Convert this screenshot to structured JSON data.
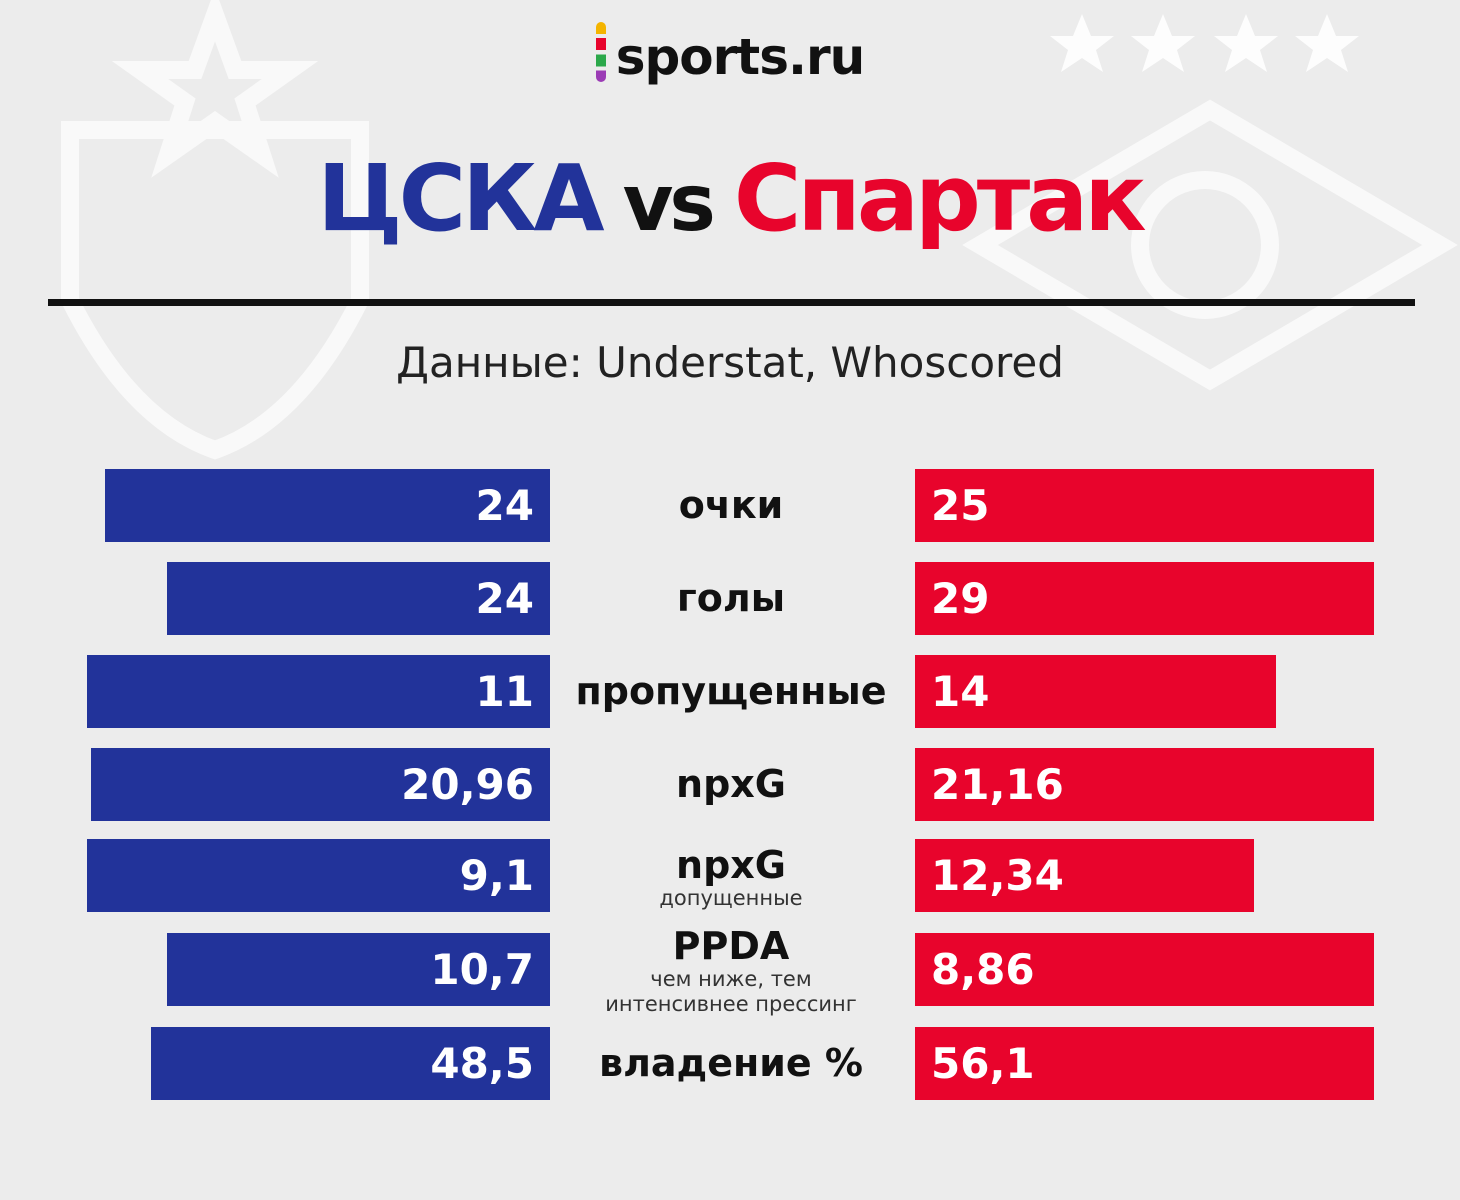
{
  "logo": "sports.ru",
  "title": {
    "left": "ЦСКА",
    "middle": "vs",
    "right": "Спартак"
  },
  "subtitle": "Данные: Understat, Whoscored",
  "rows": [
    {
      "label": "очки",
      "left": "24",
      "right": "25"
    },
    {
      "label": "голы",
      "left": "24",
      "right": "29"
    },
    {
      "label": "пропущенные",
      "left": "11",
      "right": "14"
    },
    {
      "label": "npxG",
      "left": "20,96",
      "right": "21,16"
    },
    {
      "label": "npxG",
      "note": "допущенные",
      "left": "9,1",
      "right": "12,34"
    },
    {
      "label": "PPDA",
      "note": "чем ниже, тем интенсивнее прессинг",
      "left": "10,7",
      "right": "8,86"
    },
    {
      "label": "владение %",
      "left": "48,5",
      "right": "56,1"
    }
  ]
}
